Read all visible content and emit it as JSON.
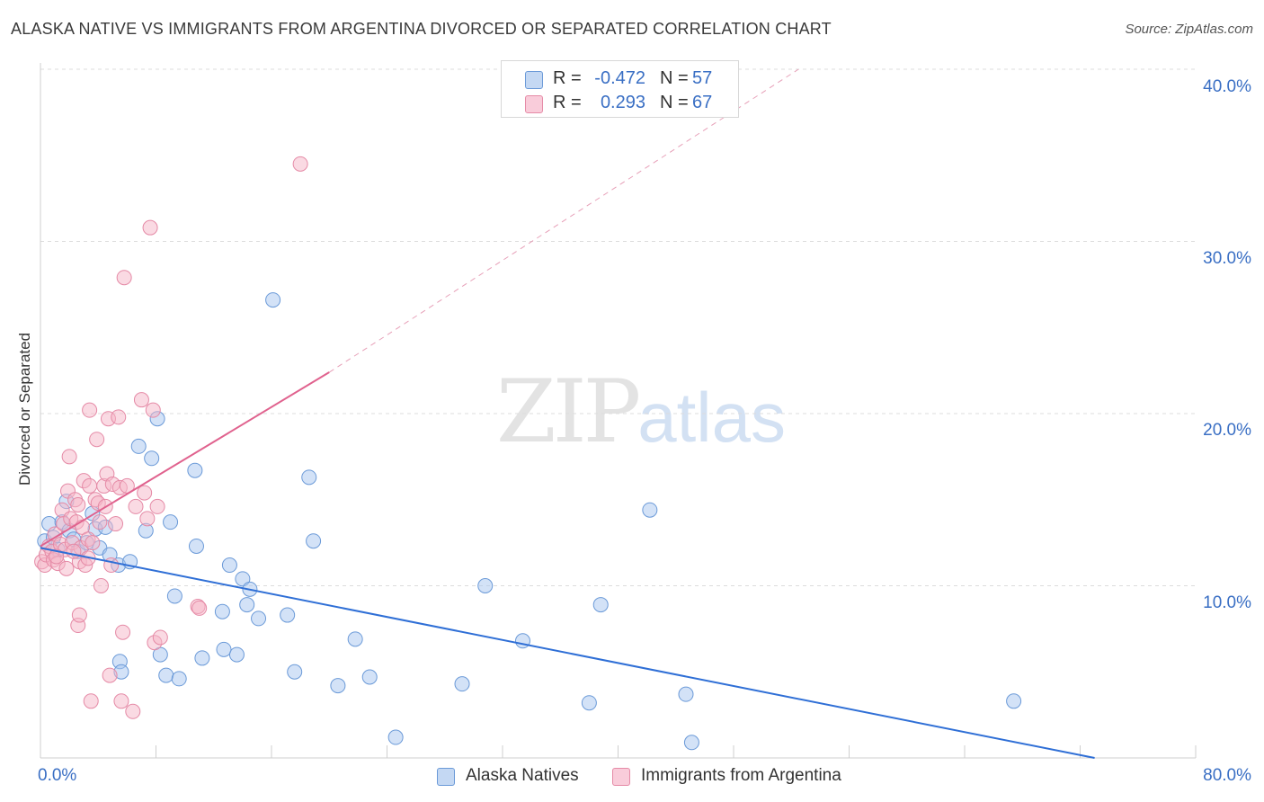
{
  "header": {
    "title": "ALASKA NATIVE VS IMMIGRANTS FROM ARGENTINA DIVORCED OR SEPARATED CORRELATION CHART",
    "source": "Source: ZipAtlas.com"
  },
  "legend_top": {
    "rows": [
      {
        "r_label": "R =",
        "r_value": "-0.472",
        "n_label": "N =",
        "n_value": "57",
        "color": "#a8c6ef"
      },
      {
        "r_label": "R =",
        "r_value": "0.293",
        "n_label": "N =",
        "n_value": "67",
        "color": "#f5b5c8"
      }
    ]
  },
  "legend_bottom": [
    {
      "label": "Alaska Natives",
      "color": "#a8c6ef"
    },
    {
      "label": "Immigrants from Argentina",
      "color": "#f5b5c8"
    }
  ],
  "watermark": {
    "zip": "ZIP",
    "atlas": "atlas"
  },
  "chart_data": {
    "type": "scatter",
    "title": "ALASKA NATIVE VS IMMIGRANTS FROM ARGENTINA DIVORCED OR SEPARATED CORRELATION CHART",
    "xlabel": "",
    "ylabel": "Divorced or Separated",
    "xlim": [
      0,
      80
    ],
    "ylim": [
      0,
      40
    ],
    "x_tick_labels": [
      "0.0%",
      "80.0%"
    ],
    "y_ticks": [
      10,
      20,
      30,
      40
    ],
    "y_tick_labels": [
      "10.0%",
      "20.0%",
      "30.0%",
      "40.0%"
    ],
    "grid": true,
    "series": [
      {
        "name": "Alaska Natives",
        "color": "#a8c6ef",
        "edge": "#6b9ad8",
        "points": [
          [
            0.3,
            12.6
          ],
          [
            0.6,
            13.6
          ],
          [
            0.9,
            12.8
          ],
          [
            1.2,
            12.1
          ],
          [
            1.5,
            13.7
          ],
          [
            1.8,
            14.9
          ],
          [
            2.0,
            13.2
          ],
          [
            2.3,
            12.7
          ],
          [
            2.6,
            12.0
          ],
          [
            3.2,
            12.5
          ],
          [
            3.6,
            14.2
          ],
          [
            3.8,
            13.3
          ],
          [
            4.1,
            12.2
          ],
          [
            4.5,
            13.4
          ],
          [
            4.8,
            11.8
          ],
          [
            5.4,
            11.2
          ],
          [
            5.5,
            5.6
          ],
          [
            5.6,
            5.0
          ],
          [
            6.2,
            11.4
          ],
          [
            6.8,
            18.1
          ],
          [
            7.3,
            13.2
          ],
          [
            7.7,
            17.4
          ],
          [
            8.1,
            19.7
          ],
          [
            8.3,
            6.0
          ],
          [
            8.7,
            4.8
          ],
          [
            9.0,
            13.7
          ],
          [
            9.3,
            9.4
          ],
          [
            9.6,
            4.6
          ],
          [
            10.7,
            16.7
          ],
          [
            10.8,
            12.3
          ],
          [
            11.2,
            5.8
          ],
          [
            12.6,
            8.5
          ],
          [
            12.7,
            6.3
          ],
          [
            13.1,
            11.2
          ],
          [
            13.6,
            6.0
          ],
          [
            14.0,
            10.4
          ],
          [
            14.3,
            8.9
          ],
          [
            14.5,
            9.8
          ],
          [
            15.1,
            8.1
          ],
          [
            16.1,
            26.6
          ],
          [
            17.1,
            8.3
          ],
          [
            17.6,
            5.0
          ],
          [
            18.6,
            16.3
          ],
          [
            18.9,
            12.6
          ],
          [
            20.6,
            4.2
          ],
          [
            21.8,
            6.9
          ],
          [
            22.8,
            4.7
          ],
          [
            24.6,
            1.2
          ],
          [
            29.2,
            4.3
          ],
          [
            30.8,
            10.0
          ],
          [
            33.4,
            6.8
          ],
          [
            38.0,
            3.2
          ],
          [
            38.8,
            8.9
          ],
          [
            42.2,
            14.4
          ],
          [
            44.7,
            3.7
          ],
          [
            45.1,
            0.9
          ],
          [
            67.4,
            3.3
          ]
        ]
      },
      {
        "name": "Immigrants from Argentina",
        "color": "#f5b5c8",
        "edge": "#e58aa6",
        "points": [
          [
            0.1,
            11.4
          ],
          [
            0.3,
            11.2
          ],
          [
            0.4,
            11.8
          ],
          [
            0.6,
            12.3
          ],
          [
            0.8,
            12.0
          ],
          [
            0.9,
            11.5
          ],
          [
            1.0,
            13.0
          ],
          [
            1.2,
            11.3
          ],
          [
            1.4,
            12.4
          ],
          [
            1.5,
            14.4
          ],
          [
            1.6,
            13.6
          ],
          [
            1.7,
            12.1
          ],
          [
            1.8,
            11.0
          ],
          [
            1.9,
            15.5
          ],
          [
            2.0,
            17.5
          ],
          [
            2.1,
            13.9
          ],
          [
            2.2,
            12.5
          ],
          [
            2.4,
            15.0
          ],
          [
            2.5,
            13.7
          ],
          [
            2.6,
            14.7
          ],
          [
            2.7,
            11.4
          ],
          [
            2.8,
            12.2
          ],
          [
            2.9,
            13.4
          ],
          [
            2.6,
            7.7
          ],
          [
            2.7,
            8.3
          ],
          [
            3.0,
            16.1
          ],
          [
            3.1,
            11.2
          ],
          [
            3.3,
            12.7
          ],
          [
            3.4,
            15.8
          ],
          [
            3.3,
            11.6
          ],
          [
            3.4,
            20.2
          ],
          [
            3.5,
            3.3
          ],
          [
            3.6,
            12.5
          ],
          [
            3.8,
            15.0
          ],
          [
            3.9,
            18.5
          ],
          [
            4.0,
            14.8
          ],
          [
            4.1,
            13.7
          ],
          [
            4.2,
            10.0
          ],
          [
            4.4,
            15.8
          ],
          [
            4.5,
            14.6
          ],
          [
            4.6,
            16.5
          ],
          [
            4.7,
            19.7
          ],
          [
            4.8,
            4.8
          ],
          [
            4.9,
            11.2
          ],
          [
            5.0,
            15.9
          ],
          [
            5.2,
            13.6
          ],
          [
            5.4,
            19.8
          ],
          [
            5.5,
            15.7
          ],
          [
            5.6,
            3.3
          ],
          [
            5.7,
            7.3
          ],
          [
            5.8,
            27.9
          ],
          [
            6.0,
            15.8
          ],
          [
            6.4,
            2.7
          ],
          [
            6.6,
            14.6
          ],
          [
            7.0,
            20.8
          ],
          [
            7.2,
            15.4
          ],
          [
            7.4,
            13.9
          ],
          [
            7.6,
            30.8
          ],
          [
            7.8,
            20.2
          ],
          [
            7.9,
            6.7
          ],
          [
            8.1,
            14.6
          ],
          [
            8.3,
            7.0
          ],
          [
            10.9,
            8.8
          ],
          [
            11.0,
            8.7
          ],
          [
            18.0,
            34.5
          ],
          [
            2.3,
            12.0
          ],
          [
            1.1,
            11.7
          ]
        ]
      }
    ],
    "trend_lines": [
      {
        "series": "Alaska Natives",
        "x": [
          0,
          73
        ],
        "y": [
          12.2,
          0
        ],
        "color": "#2f6fd6",
        "style": "solid"
      },
      {
        "series": "Immigrants from Argentina",
        "x": [
          0,
          20
        ],
        "y": [
          12.3,
          22.4
        ],
        "color": "#e0628e",
        "style": "solid"
      },
      {
        "series": "Immigrants from Argentina",
        "x": [
          20,
          52.5
        ],
        "y": [
          22.4,
          40.0
        ],
        "color": "#e7a0b8",
        "style": "dashed"
      }
    ]
  }
}
